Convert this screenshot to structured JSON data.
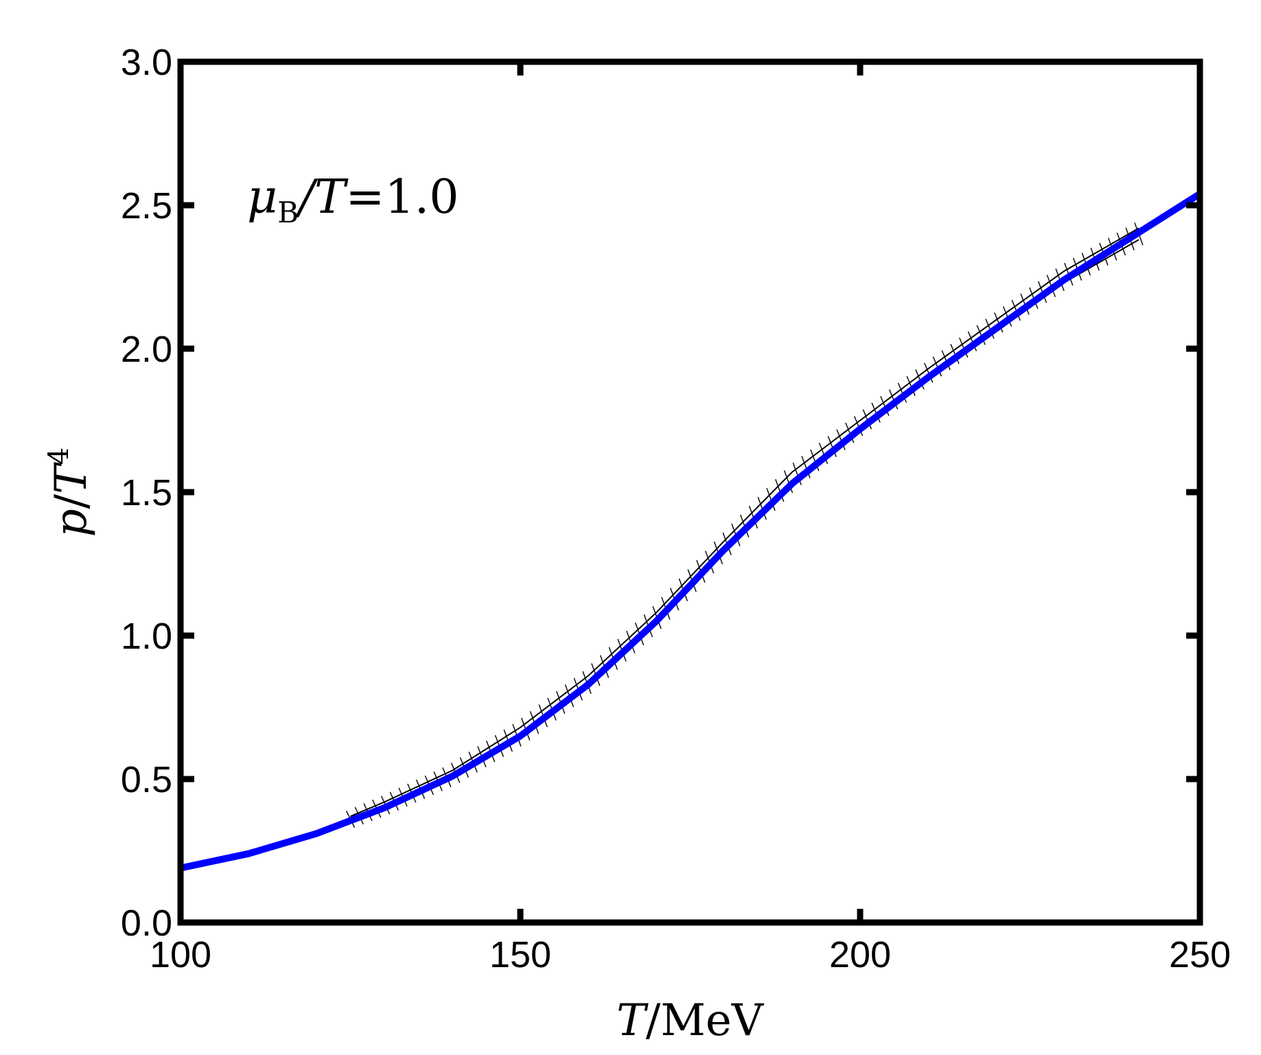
{
  "chart_data": {
    "type": "line",
    "annotation": {
      "mu": "μ",
      "sub": "B",
      "rest": "/T",
      "eq": "=",
      "val": "1.0"
    },
    "xlabel": {
      "var": "T",
      "unit": "/MeV"
    },
    "ylabel": {
      "var": "p",
      "slash": "/",
      "T": "T",
      "exp": "4"
    },
    "xlim": [
      100,
      250
    ],
    "ylim": [
      0.0,
      3.0
    ],
    "xticks": [
      100,
      150,
      200,
      250
    ],
    "xtick_labels": [
      "100",
      "150",
      "200",
      "250"
    ],
    "yticks": [
      0.0,
      0.5,
      1.0,
      1.5,
      2.0,
      2.5,
      3.0
    ],
    "ytick_labels": [
      "0.0",
      "0.5",
      "1.0",
      "1.5",
      "2.0",
      "2.5",
      "3.0"
    ],
    "grid": false,
    "series": [
      {
        "style": "line",
        "color": "#0000ff",
        "x": [
          100,
          110,
          120,
          125,
          130,
          140,
          150,
          160,
          170,
          180,
          190,
          200,
          210,
          220,
          230,
          240,
          250
        ],
        "y": [
          0.19,
          0.24,
          0.31,
          0.355,
          0.4,
          0.51,
          0.65,
          0.83,
          1.05,
          1.3,
          1.53,
          1.72,
          1.9,
          2.07,
          2.24,
          2.39,
          2.54
        ]
      },
      {
        "style": "band",
        "color": "#000000",
        "x": [
          125,
          130,
          140,
          150,
          160,
          170,
          180,
          190,
          200,
          210,
          220,
          230,
          241
        ],
        "upper": [
          0.37,
          0.42,
          0.53,
          0.68,
          0.86,
          1.08,
          1.33,
          1.57,
          1.75,
          1.93,
          2.1,
          2.27,
          2.42
        ],
        "lower": [
          0.35,
          0.395,
          0.5,
          0.64,
          0.82,
          1.04,
          1.29,
          1.53,
          1.72,
          1.9,
          2.07,
          2.23,
          2.38
        ]
      }
    ]
  }
}
